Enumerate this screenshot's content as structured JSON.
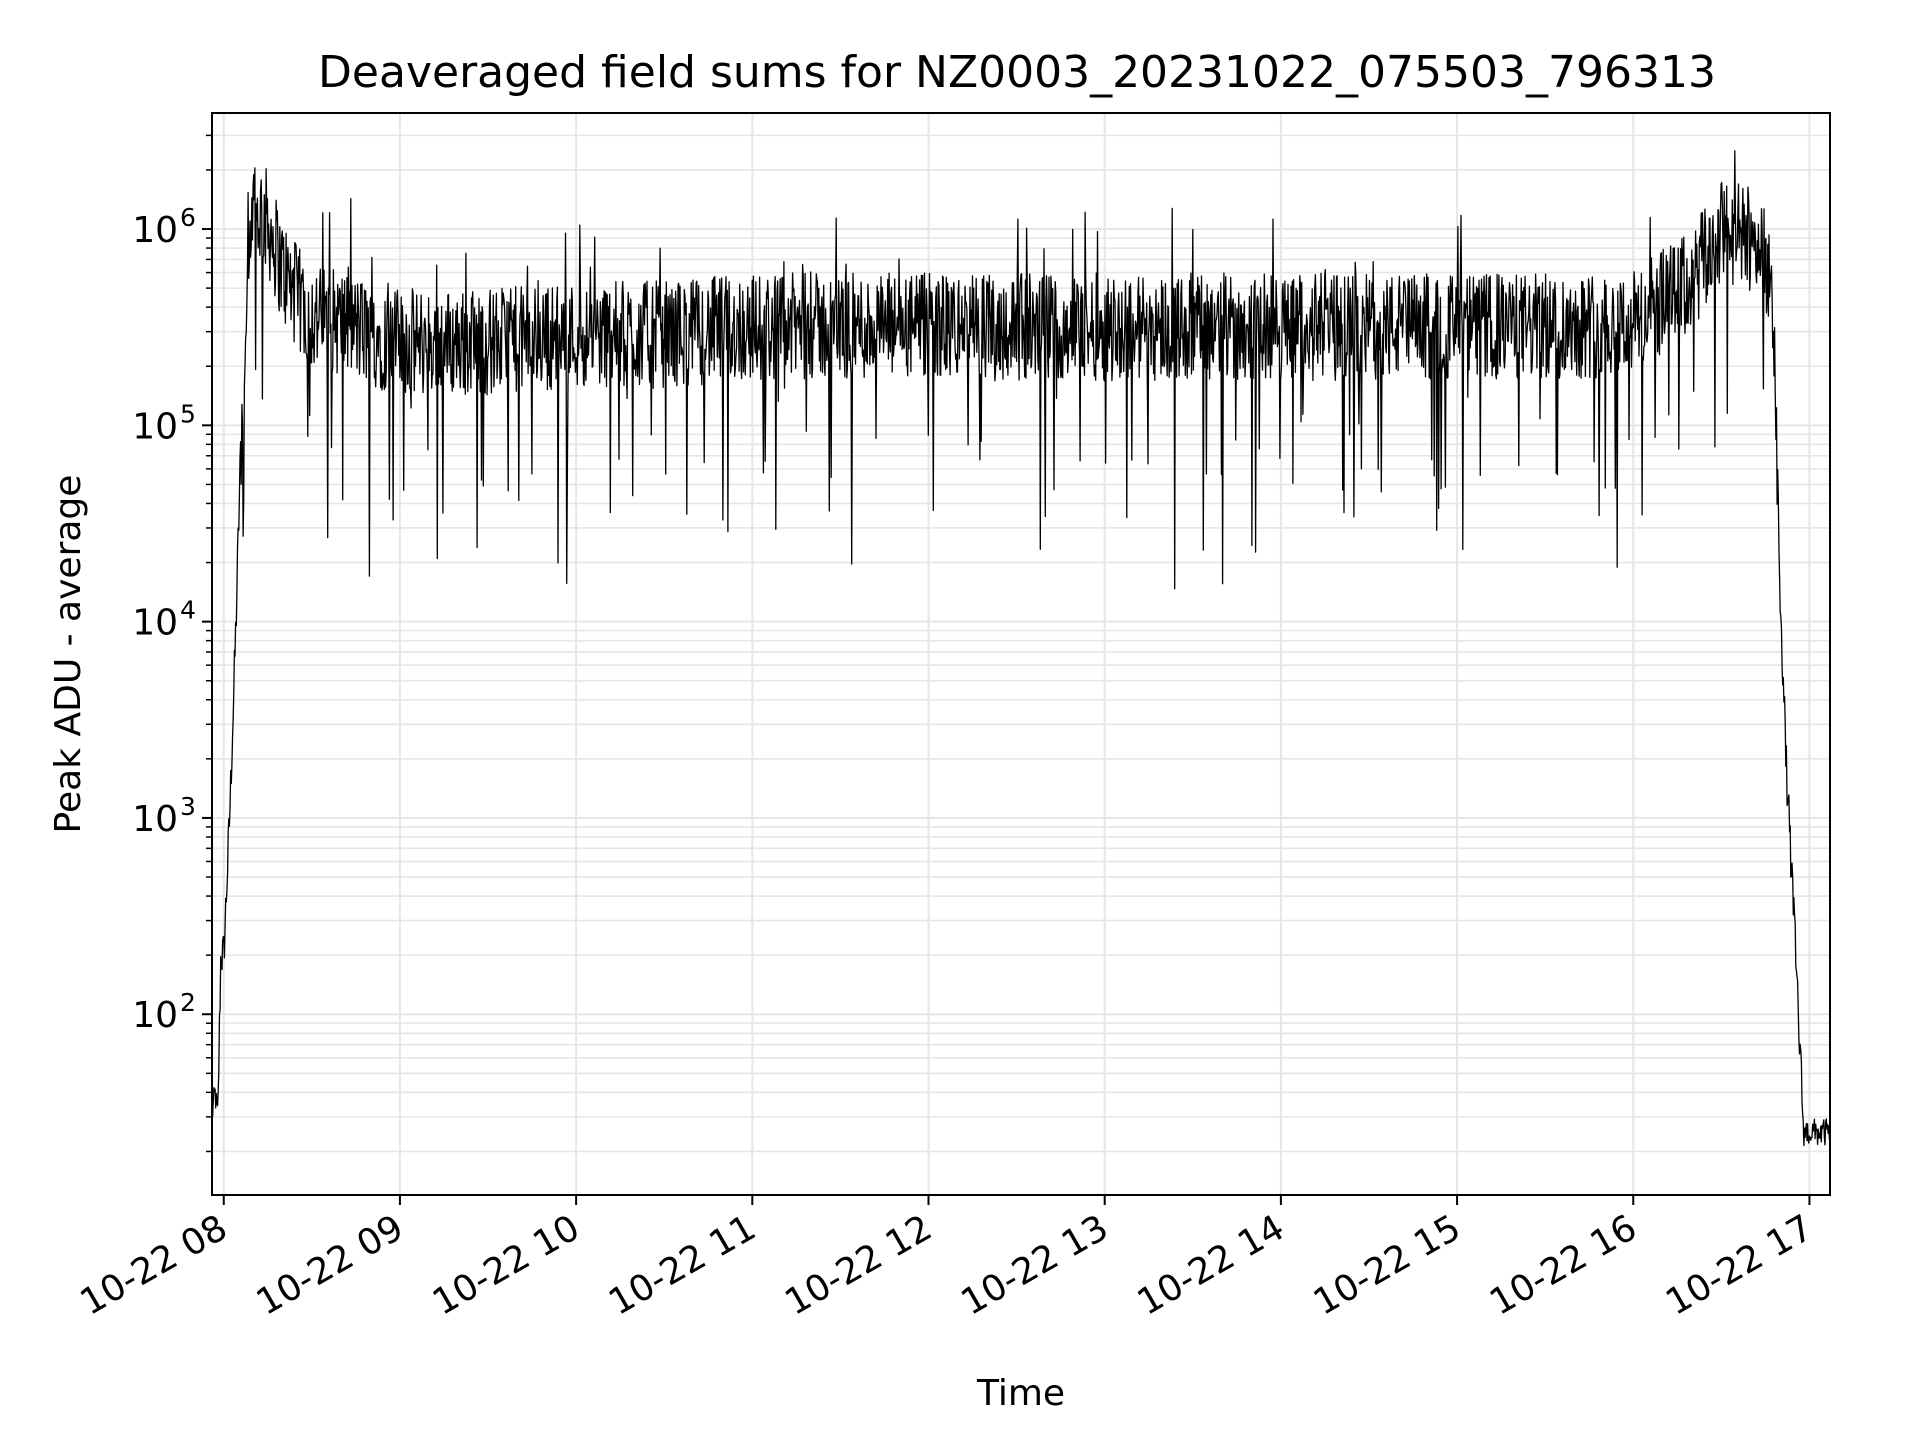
{
  "chart_data": {
    "type": "line",
    "title": "Deaveraged field sums for NZ0003_20231022_075503_796313",
    "xlabel": "Time",
    "ylabel": "Peak ADU - average",
    "yscale": "log",
    "ylim": [
      12,
      3900000
    ],
    "xlim": [
      "2023-10-22 07:56",
      "2023-10-22 17:07"
    ],
    "grid": "on (major and minor, light grey)",
    "x_ticks": [
      {
        "label": "10-22 08",
        "value": "2023-10-22 08:00"
      },
      {
        "label": "10-22 09",
        "value": "2023-10-22 09:00"
      },
      {
        "label": "10-22 10",
        "value": "2023-10-22 10:00"
      },
      {
        "label": "10-22 11",
        "value": "2023-10-22 11:00"
      },
      {
        "label": "10-22 12",
        "value": "2023-10-22 12:00"
      },
      {
        "label": "10-22 13",
        "value": "2023-10-22 13:00"
      },
      {
        "label": "10-22 14",
        "value": "2023-10-22 14:00"
      },
      {
        "label": "10-22 15",
        "value": "2023-10-22 15:00"
      },
      {
        "label": "10-22 16",
        "value": "2023-10-22 16:00"
      },
      {
        "label": "10-22 17",
        "value": "2023-10-22 17:00"
      }
    ],
    "y_ticks": [
      {
        "base": "10",
        "exp": "2",
        "value": 100
      },
      {
        "base": "10",
        "exp": "3",
        "value": 1000
      },
      {
        "base": "10",
        "exp": "4",
        "value": 10000
      },
      {
        "base": "10",
        "exp": "5",
        "value": 100000
      },
      {
        "base": "10",
        "exp": "6",
        "value": 1000000
      }
    ],
    "series": [
      {
        "color": "#000000",
        "x": [
          "2023-10-22 07:56",
          "2023-10-22 07:57",
          "2023-10-22 07:58",
          "2023-10-22 07:59",
          "2023-10-22 08:00",
          "2023-10-22 08:02",
          "2023-10-22 08:04",
          "2023-10-22 08:06",
          "2023-10-22 08:08",
          "2023-10-22 08:10",
          "2023-10-22 08:13",
          "2023-10-22 08:16",
          "2023-10-22 08:20",
          "2023-10-22 08:25",
          "2023-10-22 08:30",
          "2023-10-22 08:40",
          "2023-10-22 08:50",
          "2023-10-22 09:00",
          "2023-10-22 09:30",
          "2023-10-22 10:00",
          "2023-10-22 10:30",
          "2023-10-22 11:00",
          "2023-10-22 11:30",
          "2023-10-22 12:00",
          "2023-10-22 12:30",
          "2023-10-22 13:00",
          "2023-10-22 13:30",
          "2023-10-22 14:00",
          "2023-10-22 14:30",
          "2023-10-22 15:00",
          "2023-10-22 15:30",
          "2023-10-22 16:00",
          "2023-10-22 16:20",
          "2023-10-22 16:30",
          "2023-10-22 16:40",
          "2023-10-22 16:45",
          "2023-10-22 16:48",
          "2023-10-22 16:50",
          "2023-10-22 16:52",
          "2023-10-22 16:54",
          "2023-10-22 16:56",
          "2023-10-22 16:58",
          "2023-10-22 17:00",
          "2023-10-22 17:03",
          "2023-10-22 17:07"
        ],
        "y": [
          30,
          40,
          30,
          200,
          200,
          1000,
          8000,
          100000,
          400000,
          1200000,
          1400000,
          1100000,
          700000,
          500000,
          400000,
          380000,
          330000,
          300000,
          300000,
          330000,
          330000,
          360000,
          360000,
          360000,
          360000,
          360000,
          360000,
          360000,
          360000,
          360000,
          360000,
          380000,
          600000,
          1100000,
          1000000,
          900000,
          300000,
          15000,
          2000,
          500,
          120,
          25,
          25,
          25,
          25
        ]
      }
    ]
  }
}
